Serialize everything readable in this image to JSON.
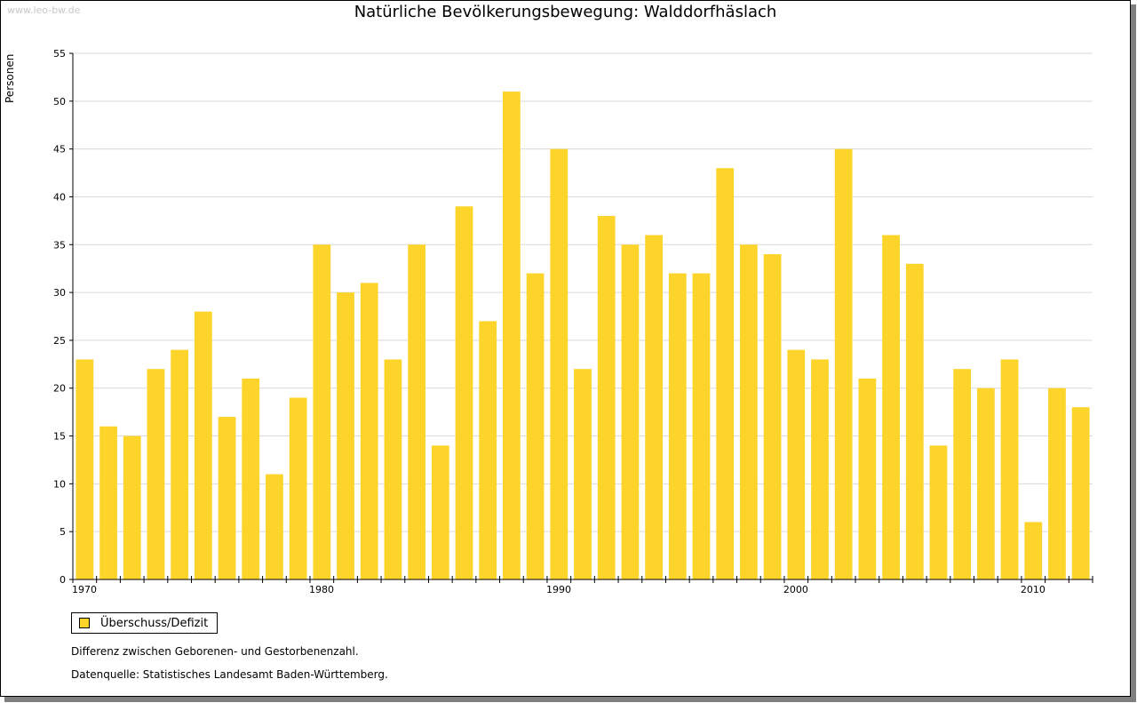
{
  "watermark": "www.leo-bw.de",
  "chart_data": {
    "type": "bar",
    "title": "Natürliche Bevölkerungsbewegung: Walddorfhäslach",
    "xlabel": "",
    "ylabel": "Personen",
    "ylim": [
      0,
      55
    ],
    "yticks": [
      0,
      5,
      10,
      15,
      20,
      25,
      30,
      35,
      40,
      45,
      50,
      55
    ],
    "xtick_labels": [
      "1970",
      "1980",
      "1990",
      "2000",
      "2010"
    ],
    "grid": true,
    "bar_color": "#fdd42a",
    "categories": [
      1970,
      1971,
      1972,
      1973,
      1974,
      1975,
      1976,
      1977,
      1978,
      1979,
      1980,
      1981,
      1982,
      1983,
      1984,
      1985,
      1986,
      1987,
      1988,
      1989,
      1990,
      1991,
      1992,
      1993,
      1994,
      1995,
      1996,
      1997,
      1998,
      1999,
      2000,
      2001,
      2002,
      2003,
      2004,
      2005,
      2006,
      2007,
      2008,
      2009,
      2010,
      2011,
      2012
    ],
    "series": [
      {
        "name": "Überschuss/Defizit",
        "values": [
          23,
          16,
          15,
          22,
          24,
          28,
          17,
          21,
          11,
          19,
          35,
          30,
          31,
          23,
          35,
          14,
          39,
          27,
          51,
          32,
          45,
          22,
          38,
          35,
          36,
          32,
          32,
          43,
          35,
          34,
          24,
          23,
          45,
          21,
          36,
          33,
          14,
          22,
          20,
          23,
          6,
          20,
          18
        ]
      }
    ],
    "legend_position": "bottom-left"
  },
  "notes": {
    "line1": "Differenz zwischen Geborenen- und Gestorbenenzahl.",
    "line2": "Datenquelle: Statistisches Landesamt Baden-Württemberg."
  }
}
